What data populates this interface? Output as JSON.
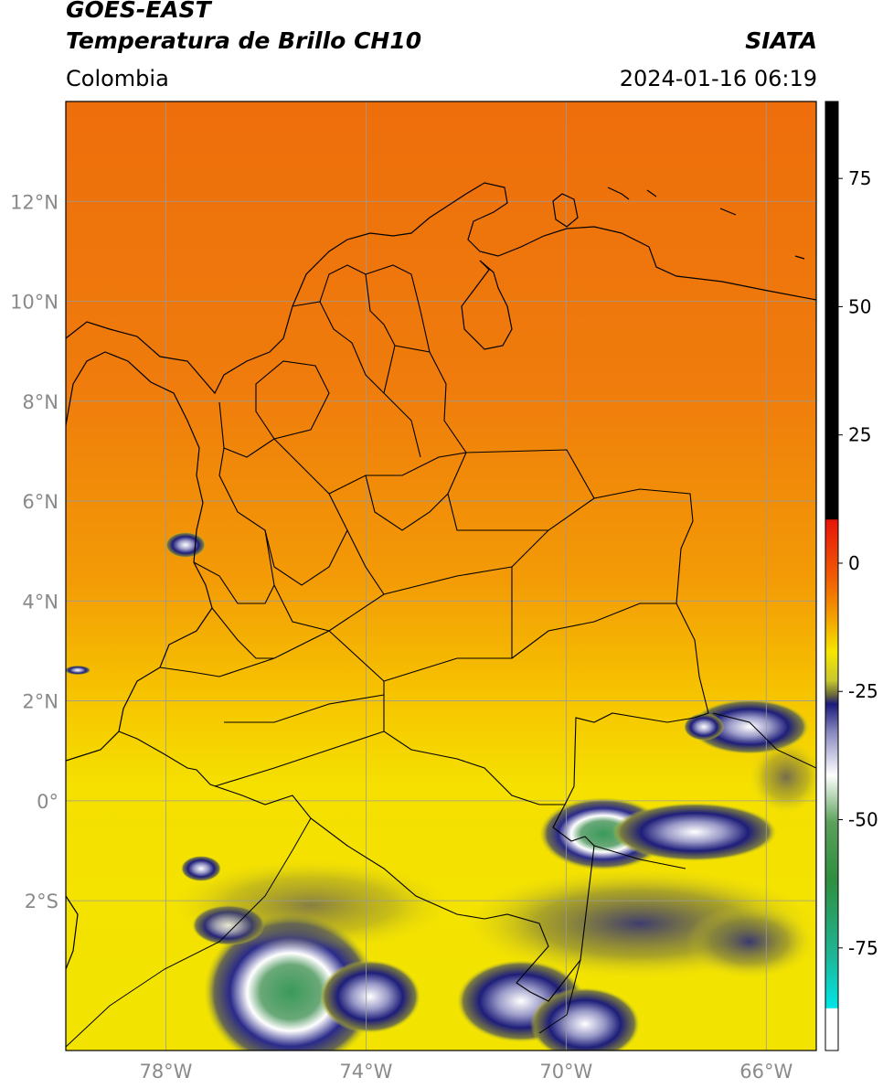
{
  "header": {
    "satellite": "GOES-EAST",
    "product": "Temperatura de Brillo CH10",
    "organization": "SIATA",
    "region": "Colombia",
    "timestamp": "2024-01-16 06:19"
  },
  "axes": {
    "lat_labels": [
      "12°N",
      "10°N",
      "8°N",
      "6°N",
      "4°N",
      "2°N",
      "0°",
      "2°S"
    ],
    "lat_values": [
      12,
      10,
      8,
      6,
      4,
      2,
      0,
      -2
    ],
    "lon_labels": [
      "78°W",
      "74°W",
      "70°W",
      "66°W"
    ],
    "lon_values": [
      -78,
      -74,
      -70,
      -66
    ],
    "lon_range": [
      -80,
      -65
    ],
    "lat_range": [
      -5,
      14
    ]
  },
  "colorbar": {
    "tick_labels": [
      "75",
      "50",
      "25",
      "0",
      "-25",
      "-50",
      "-75"
    ],
    "tick_values": [
      75,
      50,
      25,
      0,
      -25,
      -50,
      -75
    ],
    "range": [
      -95,
      90
    ],
    "colors": {
      "black": "#000000",
      "red": "#e8140a",
      "orange": "#f28000",
      "yellow": "#f5e600",
      "olive": "#8a8a30",
      "navy": "#1a1a7a",
      "white": "#ffffff",
      "green": "#2f8f3f",
      "teal": "#1fb596",
      "cyan": "#00e5e5"
    }
  },
  "map": {
    "colors": {
      "warm_north": "#ef7a0e",
      "mid": "#f5a800",
      "south": "#f2e000",
      "cold_cloud": "#1e1e78",
      "very_cold": "#3a9a5a"
    }
  }
}
